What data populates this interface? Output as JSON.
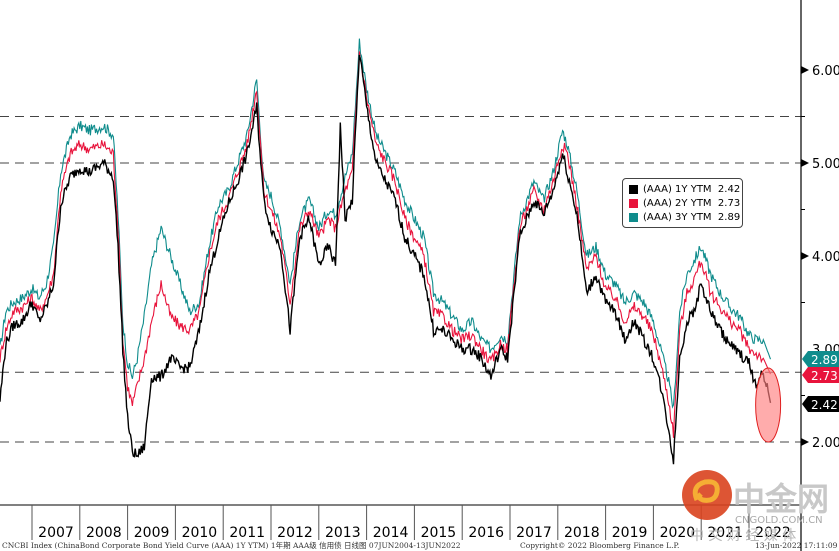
{
  "chart_data": {
    "type": "line",
    "title": "",
    "xlabel": "",
    "ylabel": "",
    "xlim": [
      2006.33,
      2022.62
    ],
    "ylim": [
      1.35,
      6.75
    ],
    "x_tick_labels": [
      "2007",
      "2008",
      "2009",
      "2010",
      "2011",
      "2012",
      "2013",
      "2014",
      "2015",
      "2016",
      "2017",
      "2018",
      "2019",
      "2020",
      "2021",
      "2022"
    ],
    "y_ticks": [
      2.0,
      4.0,
      5.0,
      6.0
    ],
    "y_tick_labels": [
      "2.00",
      "4.00",
      "5.00",
      "6.00"
    ],
    "y_partial_tick_label": "3.00",
    "reference_lines": [
      5.5,
      5.0,
      2.75,
      2.0
    ],
    "legend_position": "right",
    "series": [
      {
        "name": "(AAA) 1Y YTM",
        "last": "2.42",
        "color": "#000000",
        "x": [
          2006.33,
          2006.45,
          2006.6,
          2006.8,
          2007.0,
          2007.15,
          2007.3,
          2007.45,
          2007.6,
          2007.8,
          2008.0,
          2008.2,
          2008.5,
          2008.7,
          2008.8,
          2008.9,
          2009.0,
          2009.1,
          2009.2,
          2009.35,
          2009.5,
          2009.7,
          2009.9,
          2010.1,
          2010.3,
          2010.5,
          2010.7,
          2010.9,
          2011.1,
          2011.3,
          2011.5,
          2011.7,
          2011.85,
          2012.0,
          2012.2,
          2012.4,
          2012.6,
          2012.8,
          2013.0,
          2013.2,
          2013.35,
          2013.45,
          2013.55,
          2013.7,
          2013.85,
          2014.0,
          2014.2,
          2014.4,
          2014.6,
          2014.8,
          2015.0,
          2015.2,
          2015.4,
          2015.6,
          2015.8,
          2016.0,
          2016.2,
          2016.4,
          2016.6,
          2016.8,
          2016.95,
          2017.2,
          2017.5,
          2017.7,
          2017.9,
          2018.1,
          2018.2,
          2018.4,
          2018.6,
          2018.8,
          2019.0,
          2019.2,
          2019.4,
          2019.6,
          2019.8,
          2020.0,
          2020.15,
          2020.3,
          2020.42,
          2020.55,
          2020.7,
          2020.85,
          2021.0,
          2021.2,
          2021.4,
          2021.6,
          2021.8,
          2022.0,
          2022.15,
          2022.3,
          2022.4,
          2022.45
        ],
        "values": [
          2.45,
          3.05,
          3.25,
          3.3,
          3.5,
          3.3,
          3.45,
          3.7,
          4.55,
          4.85,
          4.95,
          4.9,
          5.0,
          4.85,
          4.1,
          3.0,
          2.25,
          1.9,
          1.85,
          1.95,
          2.7,
          2.7,
          2.9,
          2.8,
          2.8,
          3.2,
          3.8,
          4.2,
          4.55,
          4.8,
          5.1,
          5.6,
          4.6,
          4.3,
          4.1,
          3.2,
          4.2,
          4.4,
          3.9,
          4.1,
          3.9,
          5.4,
          4.4,
          4.6,
          6.2,
          5.6,
          5.0,
          4.8,
          4.6,
          4.2,
          4.0,
          3.8,
          3.2,
          3.2,
          3.1,
          3.0,
          3.0,
          2.9,
          2.7,
          3.0,
          2.9,
          4.2,
          4.6,
          4.45,
          4.7,
          5.1,
          4.9,
          4.45,
          3.6,
          3.8,
          3.5,
          3.4,
          3.1,
          3.3,
          3.1,
          2.9,
          2.6,
          2.2,
          1.8,
          2.9,
          3.3,
          3.4,
          3.7,
          3.4,
          3.2,
          3.05,
          2.95,
          2.85,
          2.6,
          2.75,
          2.55,
          2.42
        ]
      },
      {
        "name": "(AAA) 2Y YTM",
        "last": "2.73",
        "color": "#e8143c",
        "x": [
          2006.33,
          2006.45,
          2006.6,
          2006.8,
          2007.0,
          2007.15,
          2007.3,
          2007.45,
          2007.6,
          2007.8,
          2008.0,
          2008.2,
          2008.5,
          2008.7,
          2008.8,
          2008.9,
          2009.0,
          2009.1,
          2009.2,
          2009.35,
          2009.5,
          2009.7,
          2009.9,
          2010.1,
          2010.3,
          2010.5,
          2010.7,
          2010.9,
          2011.1,
          2011.3,
          2011.5,
          2011.7,
          2011.85,
          2012.0,
          2012.2,
          2012.4,
          2012.6,
          2012.8,
          2013.0,
          2013.2,
          2013.35,
          2013.55,
          2013.7,
          2013.85,
          2014.0,
          2014.2,
          2014.4,
          2014.6,
          2014.8,
          2015.0,
          2015.2,
          2015.4,
          2015.6,
          2015.8,
          2016.0,
          2016.2,
          2016.4,
          2016.6,
          2016.8,
          2016.95,
          2017.2,
          2017.5,
          2017.7,
          2017.9,
          2018.1,
          2018.2,
          2018.4,
          2018.6,
          2018.8,
          2019.0,
          2019.2,
          2019.4,
          2019.6,
          2019.8,
          2020.0,
          2020.15,
          2020.3,
          2020.42,
          2020.55,
          2020.7,
          2020.85,
          2021.0,
          2021.2,
          2021.4,
          2021.6,
          2021.8,
          2022.0,
          2022.15,
          2022.3,
          2022.45
        ],
        "values": [
          2.9,
          3.2,
          3.4,
          3.45,
          3.55,
          3.4,
          3.55,
          3.8,
          4.7,
          5.1,
          5.2,
          5.15,
          5.2,
          5.1,
          4.3,
          3.1,
          2.6,
          2.4,
          2.6,
          2.9,
          3.3,
          3.7,
          3.35,
          3.25,
          3.2,
          3.4,
          4.0,
          4.4,
          4.6,
          4.9,
          5.2,
          5.8,
          4.7,
          4.5,
          4.2,
          3.5,
          4.3,
          4.5,
          4.2,
          4.4,
          4.3,
          4.7,
          4.9,
          6.2,
          5.7,
          5.2,
          5.0,
          4.8,
          4.4,
          4.2,
          4.0,
          3.4,
          3.35,
          3.2,
          3.1,
          3.15,
          3.0,
          2.85,
          3.05,
          3.0,
          4.3,
          4.7,
          4.5,
          4.8,
          5.2,
          5.1,
          4.55,
          3.85,
          4.0,
          3.65,
          3.55,
          3.3,
          3.45,
          3.35,
          3.15,
          2.85,
          2.5,
          2.1,
          3.2,
          3.6,
          3.75,
          3.95,
          3.6,
          3.45,
          3.3,
          3.2,
          3.0,
          2.95,
          2.9,
          2.73
        ]
      },
      {
        "name": "(AAA) 3Y YTM",
        "last": "2.89",
        "color": "#0f8c8c",
        "x": [
          2006.33,
          2006.45,
          2006.6,
          2006.8,
          2007.0,
          2007.15,
          2007.3,
          2007.45,
          2007.6,
          2007.8,
          2008.0,
          2008.2,
          2008.5,
          2008.7,
          2008.8,
          2008.9,
          2009.0,
          2009.1,
          2009.2,
          2009.35,
          2009.5,
          2009.7,
          2009.9,
          2010.1,
          2010.3,
          2010.5,
          2010.7,
          2010.9,
          2011.1,
          2011.3,
          2011.5,
          2011.7,
          2011.85,
          2012.0,
          2012.2,
          2012.4,
          2012.6,
          2012.8,
          2013.0,
          2013.2,
          2013.35,
          2013.55,
          2013.7,
          2013.85,
          2014.0,
          2014.2,
          2014.4,
          2014.6,
          2014.8,
          2015.0,
          2015.2,
          2015.4,
          2015.6,
          2015.8,
          2016.0,
          2016.2,
          2016.4,
          2016.6,
          2016.8,
          2016.95,
          2017.2,
          2017.5,
          2017.7,
          2017.9,
          2018.1,
          2018.2,
          2018.4,
          2018.6,
          2018.8,
          2019.0,
          2019.2,
          2019.4,
          2019.6,
          2019.8,
          2020.0,
          2020.15,
          2020.3,
          2020.42,
          2020.55,
          2020.7,
          2020.85,
          2021.0,
          2021.2,
          2021.4,
          2021.6,
          2021.8,
          2022.0,
          2022.15,
          2022.3,
          2022.45
        ],
        "values": [
          3.0,
          3.4,
          3.5,
          3.55,
          3.65,
          3.55,
          3.7,
          4.1,
          4.9,
          5.3,
          5.4,
          5.35,
          5.4,
          5.3,
          4.45,
          3.3,
          2.85,
          2.7,
          2.9,
          3.35,
          3.9,
          4.3,
          4.0,
          3.7,
          3.4,
          3.5,
          4.1,
          4.55,
          4.7,
          5.0,
          5.3,
          5.9,
          4.8,
          4.65,
          4.3,
          3.7,
          4.4,
          4.6,
          4.3,
          4.5,
          4.45,
          4.85,
          5.1,
          6.3,
          5.8,
          5.3,
          5.1,
          4.9,
          4.6,
          4.4,
          4.2,
          3.6,
          3.5,
          3.35,
          3.2,
          3.3,
          3.1,
          3.0,
          3.15,
          3.1,
          4.4,
          4.8,
          4.6,
          4.9,
          5.35,
          5.2,
          4.7,
          4.0,
          4.1,
          3.8,
          3.7,
          3.5,
          3.6,
          3.5,
          3.3,
          3.0,
          2.7,
          2.35,
          3.4,
          3.8,
          3.95,
          4.1,
          3.8,
          3.6,
          3.45,
          3.35,
          3.15,
          3.1,
          3.1,
          2.89
        ]
      }
    ],
    "annotations": [
      {
        "type": "ellipse-highlight",
        "x_center": 2022.4,
        "y_center": 2.4,
        "color": "#ff6666"
      }
    ]
  },
  "legend": {
    "items": [
      {
        "label": "(AAA) 1Y YTM  2.42",
        "color": "#000000"
      },
      {
        "label": "(AAA) 2Y YTM  2.73",
        "color": "#e8143c"
      },
      {
        "label": "(AAA) 3Y YTM  2.89",
        "color": "#0f8c8c"
      }
    ]
  },
  "badges": [
    {
      "label": "2.89",
      "color": "#0f8c8c",
      "value": 2.89
    },
    {
      "label": "2.73",
      "color": "#e8143c",
      "value": 2.73
    },
    {
      "label": "2.42",
      "color": "#000000",
      "value": 2.42
    }
  ],
  "footer": {
    "left": "CNCBI Index (ChinaBond Corporate Bond Yield Curve (AAA) 1Y YTM) 1年期 AAA级 信用债  日线图 07JUN2004-13JUN2022",
    "center": "Copyright© 2022 Bloomberg Finance L.P.",
    "right": "13-Jun-2022 17:11:09"
  },
  "watermark": {
    "brand": "中金网",
    "domain": "CNGOLD.COM.CN",
    "tagline": "中 文 财 经 媒 体"
  }
}
